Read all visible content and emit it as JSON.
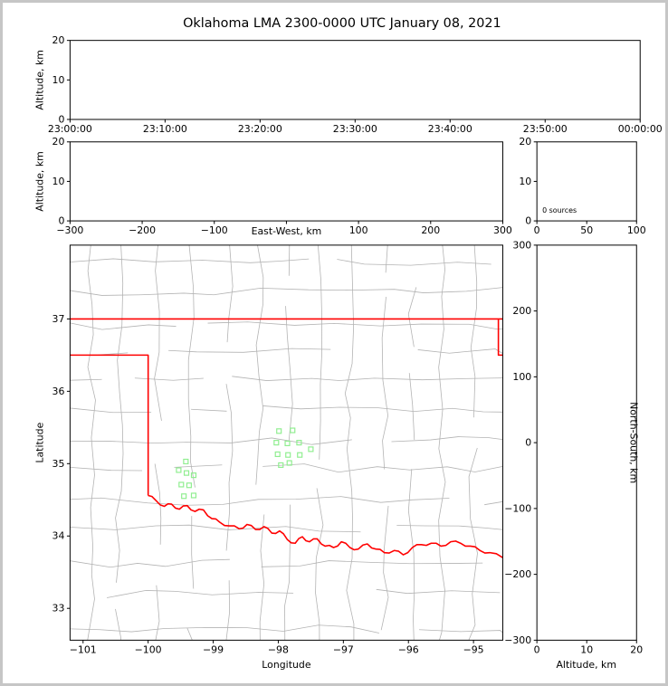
{
  "title": "Oklahoma LMA 2300-0000 UTC January 08, 2021",
  "colors": {
    "background": "#ffffff",
    "frame_border": "#c6c6c6",
    "axis": "#000000",
    "state_border": "#ff0000",
    "county_lines": "#b3b3b3",
    "source_marker": "#90ee90"
  },
  "chart_data": [
    {
      "id": "time_height",
      "type": "scatter",
      "title": "",
      "xlabel": "",
      "ylabel": "Altitude, km",
      "xlim": [
        0,
        6
      ],
      "x_ticks": [
        0,
        1,
        2,
        3,
        4,
        5,
        6
      ],
      "x_tick_labels": [
        "23:00:00",
        "23:10:00",
        "23:20:00",
        "23:30:00",
        "23:40:00",
        "23:50:00",
        "00:00:00"
      ],
      "ylim": [
        0,
        20
      ],
      "y_ticks": [
        0,
        10,
        20
      ],
      "y_tick_labels": [
        "0",
        "10",
        "20"
      ],
      "points": []
    },
    {
      "id": "ew_height",
      "type": "scatter",
      "xlabel": "East-West, km",
      "ylabel": "Altitude, km",
      "xlim": [
        -300,
        300
      ],
      "x_ticks": [
        -300,
        -200,
        -100,
        0,
        100,
        200,
        300
      ],
      "x_tick_labels": [
        "−300",
        "−200",
        "−100",
        "",
        "100",
        "200",
        "300"
      ],
      "ylim": [
        0,
        20
      ],
      "y_ticks": [
        0,
        10,
        20
      ],
      "y_tick_labels": [
        "0",
        "10",
        "20"
      ],
      "points": []
    },
    {
      "id": "source_histogram",
      "type": "scatter",
      "annotation": "0 sources",
      "xlim": [
        0,
        100
      ],
      "x_ticks": [
        0,
        50,
        100
      ],
      "x_tick_labels": [
        "0",
        "50",
        "100"
      ],
      "ylim": [
        0,
        20
      ],
      "y_ticks": [
        0,
        10,
        20
      ],
      "y_tick_labels": [
        "0",
        "10",
        "20"
      ],
      "points": []
    },
    {
      "id": "plan_view",
      "type": "scatter",
      "xlabel": "Longitude",
      "ylabel": "Latitude",
      "xlim": [
        -101.2,
        -94.55
      ],
      "ylim": [
        32.56,
        38.02
      ],
      "x_ticks": [
        -101,
        -100,
        -99,
        -98,
        -97,
        -96,
        -95
      ],
      "x_tick_labels": [
        "−101",
        "−100",
        "−99",
        "−98",
        "−97",
        "−96",
        "−95"
      ],
      "y_ticks": [
        33,
        34,
        35,
        36,
        37
      ],
      "y_tick_labels": [
        "33",
        "34",
        "35",
        "36",
        "37"
      ],
      "marker": "open-square",
      "map": {
        "state": "Oklahoma",
        "features": [
          "county boundaries",
          "state border at 37N",
          "panhandle border at 36.5N and 100W",
          "Red River southern border"
        ]
      },
      "points": [
        [
          -97.99,
          35.45
        ],
        [
          -97.78,
          35.46
        ],
        [
          -98.03,
          35.29
        ],
        [
          -97.86,
          35.28
        ],
        [
          -97.68,
          35.29
        ],
        [
          -97.5,
          35.2
        ],
        [
          -98.01,
          35.13
        ],
        [
          -97.85,
          35.12
        ],
        [
          -97.67,
          35.12
        ],
        [
          -97.96,
          34.98
        ],
        [
          -97.83,
          35.01
        ],
        [
          -99.42,
          35.03
        ],
        [
          -99.53,
          34.91
        ],
        [
          -99.41,
          34.87
        ],
        [
          -99.3,
          34.84
        ],
        [
          -99.49,
          34.71
        ],
        [
          -99.37,
          34.7
        ],
        [
          -99.45,
          34.55
        ],
        [
          -99.3,
          34.56
        ]
      ]
    },
    {
      "id": "ns_height",
      "type": "scatter",
      "xlabel": "Altitude, km",
      "ylabel": "North-South, km",
      "xlim": [
        0,
        20
      ],
      "x_ticks": [
        0,
        10,
        20
      ],
      "x_tick_labels": [
        "0",
        "10",
        "20"
      ],
      "ylim": [
        -300,
        300
      ],
      "y_ticks": [
        -300,
        -200,
        -100,
        0,
        100,
        200,
        300
      ],
      "y_tick_labels": [
        "−300",
        "−200",
        "−100",
        "0",
        "100",
        "200",
        "300"
      ],
      "points": []
    }
  ]
}
